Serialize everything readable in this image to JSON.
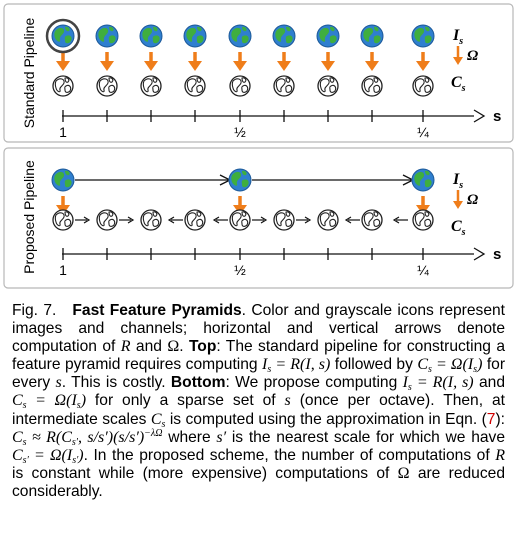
{
  "figure": {
    "top_panel_label": "Standard Pipeline",
    "bottom_panel_label": "Proposed Pipeline",
    "legend_image": "I",
    "legend_image_sub": "s",
    "legend_channel": "C",
    "legend_channel_sub": "s",
    "legend_omega": "Ω",
    "axis_label": "s",
    "tick_labels": [
      "1",
      "½",
      "¼"
    ],
    "colors": {
      "arrow_orange": "#ef7d1a",
      "globe_blue": "#2f7fcf",
      "globe_land": "#3fae3f",
      "circle_highlight": "#444444",
      "panel_border": "#b8b8b8"
    },
    "icons": [
      "color-globe-icon",
      "grayscale-globe-icon"
    ]
  },
  "caption": {
    "fig_label": "Fig. 7.",
    "title": "Fast Feature Pyramids",
    "s1": ". Color and grayscale icons represent images and channels; horizontal and vertical arrows denote computation of ",
    "R1": "R",
    "s2": " and ",
    "Om1": "Ω",
    "s3": ". ",
    "top_label": "Top",
    "s4": ": The standard pipeline for constructing a feature pyramid requires computing ",
    "eq1": "I",
    "eq1_sub": "s",
    "eq1_rest": " = R(I, s)",
    "s5": " followed by ",
    "eq2": "C",
    "eq2_sub": "s",
    "eq2_rest": " = Ω(I",
    "eq2_sub2": "s",
    "eq2_close": ")",
    "s6": " for every ",
    "s_var1": "s",
    "s7": ". This is costly. ",
    "bottom_label": "Bottom",
    "s8": ": We propose computing ",
    "eq3": "I",
    "eq3_sub": "s",
    "eq3_rest": " = R(I, s)",
    "s9": " and ",
    "eq4": "C",
    "eq4_sub": "s",
    "eq4_rest": " = Ω(I",
    "eq4_sub2": "s",
    "eq4_close": ")",
    "s10": " for only a sparse set of ",
    "s_var2": "s",
    "s11": " (once per octave). Then, at intermediate scales ",
    "eq5": "C",
    "eq5_sub": "s",
    "s12": " is computed using the approximation in Eqn. (",
    "ref": "7",
    "s13": "): ",
    "eq6a": "C",
    "eq6a_sub": "s",
    "eq6b": " ≈ R(C",
    "eq6b_sub": "s′",
    "eq6c": ", s/s′)(s/s′)",
    "eq6_sup": "−λΩ",
    "s14": " where ",
    "s_prime": "s′",
    "s15": " is the nearest scale for which we have ",
    "eq7": "C",
    "eq7_sub": "s′",
    "eq7_rest": " = Ω(I",
    "eq7_sub2": "s′",
    "eq7_close": ")",
    "s16": ". In the proposed scheme, the number of computations of ",
    "R2": "R",
    "s17": " is constant while (more expensive) computations of ",
    "Om2": "Ω",
    "s18": " are reduced considerably."
  }
}
